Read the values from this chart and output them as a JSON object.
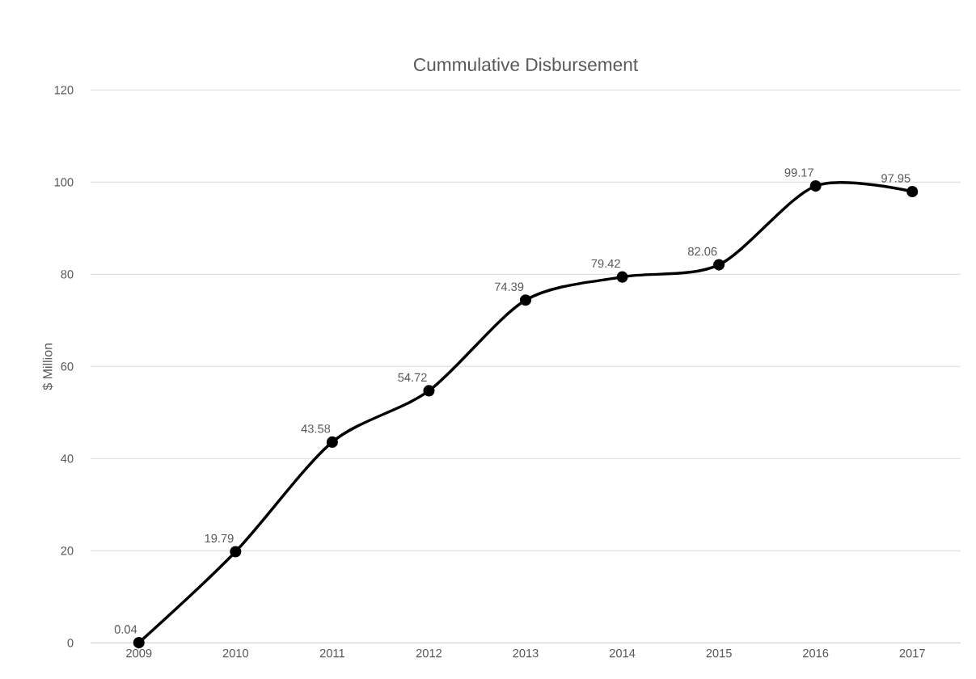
{
  "chart_data": {
    "type": "line",
    "title": "Cummulative Disbursement",
    "ylabel": "$ Million",
    "categories": [
      "2009",
      "2010",
      "2011",
      "2012",
      "2013",
      "2014",
      "2015",
      "2016",
      "2017"
    ],
    "values": [
      0.04,
      19.79,
      43.58,
      54.72,
      74.39,
      79.42,
      82.06,
      99.17,
      97.95
    ],
    "color": "#000000",
    "ylim": [
      0,
      120
    ],
    "yticks": [
      0,
      20,
      40,
      60,
      80,
      100,
      120
    ],
    "grid": "y",
    "marker": "circle",
    "line_style": "solid",
    "data_labels": true
  }
}
